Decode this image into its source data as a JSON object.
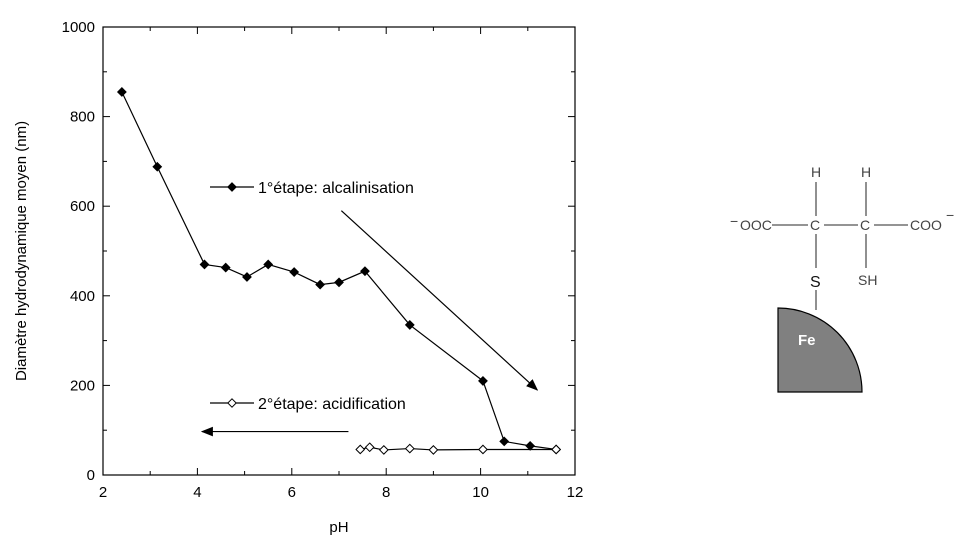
{
  "chart_data": {
    "type": "line",
    "xlabel": "pH",
    "ylabel": "Diamètre hydrodynamique moyen (nm)",
    "xlim": [
      2,
      12
    ],
    "ylim": [
      0,
      1000
    ],
    "xticks": [
      "2",
      "4",
      "6",
      "8",
      "10",
      "12"
    ],
    "yticks": [
      "0",
      "200",
      "400",
      "600",
      "800",
      "1000"
    ],
    "series": [
      {
        "name": "1°étape:  alcalinisation",
        "marker": "filled-diamond",
        "x": [
          2.4,
          3.15,
          4.15,
          4.6,
          5.05,
          5.5,
          6.05,
          6.6,
          7.0,
          7.55,
          8.5,
          10.05,
          10.5,
          11.05,
          11.6
        ],
        "y": [
          855,
          688,
          470,
          463,
          442,
          470,
          453,
          425,
          430,
          455,
          335,
          210,
          75,
          65,
          57
        ]
      },
      {
        "name": "2°étape: acidification",
        "marker": "open-diamond",
        "x": [
          7.45,
          7.65,
          7.95,
          8.5,
          9.0,
          10.05,
          11.6
        ],
        "y": [
          57,
          62,
          56,
          59,
          56,
          57,
          57
        ]
      }
    ],
    "annotations": [
      {
        "type": "arrow",
        "direction": "down-right",
        "from": [
          7.05,
          590
        ],
        "to": [
          11.2,
          190
        ]
      },
      {
        "type": "arrow",
        "direction": "left",
        "from": [
          7.2,
          97
        ],
        "to": [
          4.1,
          97
        ]
      }
    ]
  },
  "molecule": {
    "left_group": "OOC",
    "left_charge": "−",
    "right_group": "COO",
    "right_charge": "−",
    "carbon1": "C",
    "carbon2": "C",
    "h1": "H",
    "h2": "H",
    "sulfur": "S",
    "sh_group": "SH",
    "particle": "Fe",
    "particle_color": "#808080"
  }
}
